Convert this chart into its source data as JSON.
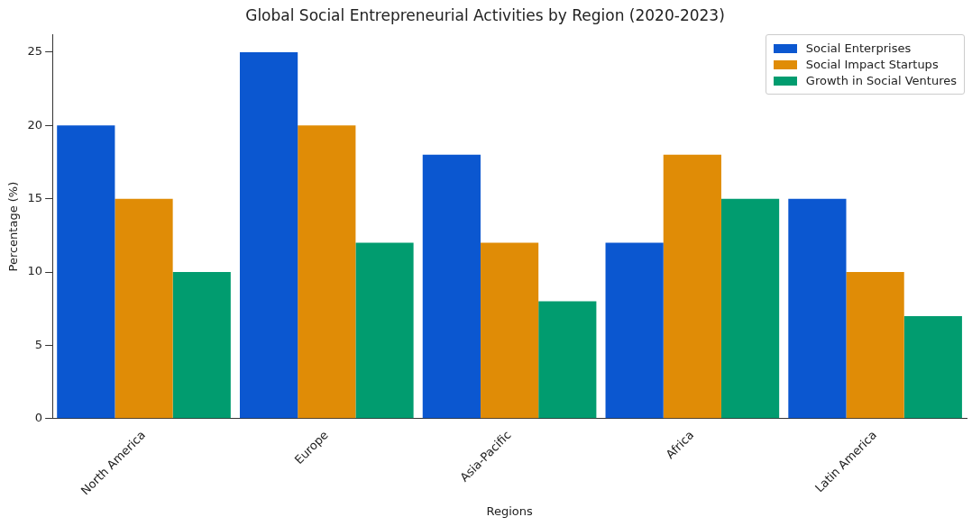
{
  "chart_data": {
    "type": "bar",
    "title": "Global Social Entrepreneurial Activities by Region (2020-2023)",
    "xlabel": "Regions",
    "ylabel": "Percentage (%)",
    "categories": [
      "North America",
      "Europe",
      "Asia-Pacific",
      "Africa",
      "Latin America"
    ],
    "series": [
      {
        "name": "Social Enterprises",
        "color": "#0b57d0",
        "values": [
          20,
          25,
          18,
          12,
          15
        ]
      },
      {
        "name": "Social Impact Startups",
        "color": "#e08c06",
        "values": [
          15,
          20,
          12,
          18,
          10
        ]
      },
      {
        "name": "Growth in Social Ventures",
        "color": "#019c6f",
        "values": [
          10,
          12,
          8,
          15,
          7
        ]
      }
    ],
    "ylim": [
      0,
      26.2
    ],
    "yticks": [
      0,
      5,
      10,
      15,
      20,
      25
    ],
    "grid": false,
    "legend": "top right"
  }
}
